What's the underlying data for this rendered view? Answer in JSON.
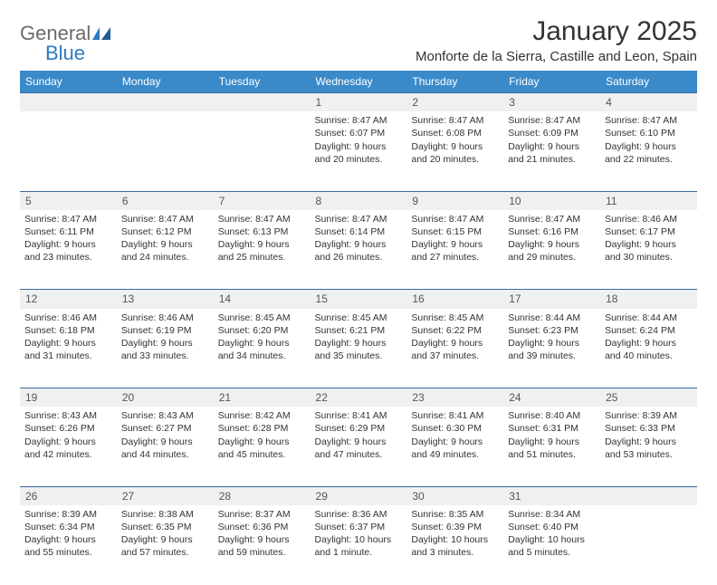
{
  "logo": {
    "part1": "General",
    "part2": "Blue"
  },
  "title": "January 2025",
  "location": "Monforte de la Sierra, Castille and Leon, Spain",
  "colors": {
    "header_bg": "#3a8ac9",
    "header_text": "#ffffff",
    "daynum_bg": "#eef0f2",
    "border": "#3a6a9a",
    "logo_gray": "#6a6a6a",
    "logo_blue": "#2a7bbf"
  },
  "day_headers": [
    "Sunday",
    "Monday",
    "Tuesday",
    "Wednesday",
    "Thursday",
    "Friday",
    "Saturday"
  ],
  "weeks": [
    {
      "nums": [
        "",
        "",
        "",
        "1",
        "2",
        "3",
        "4"
      ],
      "cells": [
        null,
        null,
        null,
        {
          "sunrise": "Sunrise: 8:47 AM",
          "sunset": "Sunset: 6:07 PM",
          "day1": "Daylight: 9 hours",
          "day2": "and 20 minutes."
        },
        {
          "sunrise": "Sunrise: 8:47 AM",
          "sunset": "Sunset: 6:08 PM",
          "day1": "Daylight: 9 hours",
          "day2": "and 20 minutes."
        },
        {
          "sunrise": "Sunrise: 8:47 AM",
          "sunset": "Sunset: 6:09 PM",
          "day1": "Daylight: 9 hours",
          "day2": "and 21 minutes."
        },
        {
          "sunrise": "Sunrise: 8:47 AM",
          "sunset": "Sunset: 6:10 PM",
          "day1": "Daylight: 9 hours",
          "day2": "and 22 minutes."
        }
      ]
    },
    {
      "nums": [
        "5",
        "6",
        "7",
        "8",
        "9",
        "10",
        "11"
      ],
      "cells": [
        {
          "sunrise": "Sunrise: 8:47 AM",
          "sunset": "Sunset: 6:11 PM",
          "day1": "Daylight: 9 hours",
          "day2": "and 23 minutes."
        },
        {
          "sunrise": "Sunrise: 8:47 AM",
          "sunset": "Sunset: 6:12 PM",
          "day1": "Daylight: 9 hours",
          "day2": "and 24 minutes."
        },
        {
          "sunrise": "Sunrise: 8:47 AM",
          "sunset": "Sunset: 6:13 PM",
          "day1": "Daylight: 9 hours",
          "day2": "and 25 minutes."
        },
        {
          "sunrise": "Sunrise: 8:47 AM",
          "sunset": "Sunset: 6:14 PM",
          "day1": "Daylight: 9 hours",
          "day2": "and 26 minutes."
        },
        {
          "sunrise": "Sunrise: 8:47 AM",
          "sunset": "Sunset: 6:15 PM",
          "day1": "Daylight: 9 hours",
          "day2": "and 27 minutes."
        },
        {
          "sunrise": "Sunrise: 8:47 AM",
          "sunset": "Sunset: 6:16 PM",
          "day1": "Daylight: 9 hours",
          "day2": "and 29 minutes."
        },
        {
          "sunrise": "Sunrise: 8:46 AM",
          "sunset": "Sunset: 6:17 PM",
          "day1": "Daylight: 9 hours",
          "day2": "and 30 minutes."
        }
      ]
    },
    {
      "nums": [
        "12",
        "13",
        "14",
        "15",
        "16",
        "17",
        "18"
      ],
      "cells": [
        {
          "sunrise": "Sunrise: 8:46 AM",
          "sunset": "Sunset: 6:18 PM",
          "day1": "Daylight: 9 hours",
          "day2": "and 31 minutes."
        },
        {
          "sunrise": "Sunrise: 8:46 AM",
          "sunset": "Sunset: 6:19 PM",
          "day1": "Daylight: 9 hours",
          "day2": "and 33 minutes."
        },
        {
          "sunrise": "Sunrise: 8:45 AM",
          "sunset": "Sunset: 6:20 PM",
          "day1": "Daylight: 9 hours",
          "day2": "and 34 minutes."
        },
        {
          "sunrise": "Sunrise: 8:45 AM",
          "sunset": "Sunset: 6:21 PM",
          "day1": "Daylight: 9 hours",
          "day2": "and 35 minutes."
        },
        {
          "sunrise": "Sunrise: 8:45 AM",
          "sunset": "Sunset: 6:22 PM",
          "day1": "Daylight: 9 hours",
          "day2": "and 37 minutes."
        },
        {
          "sunrise": "Sunrise: 8:44 AM",
          "sunset": "Sunset: 6:23 PM",
          "day1": "Daylight: 9 hours",
          "day2": "and 39 minutes."
        },
        {
          "sunrise": "Sunrise: 8:44 AM",
          "sunset": "Sunset: 6:24 PM",
          "day1": "Daylight: 9 hours",
          "day2": "and 40 minutes."
        }
      ]
    },
    {
      "nums": [
        "19",
        "20",
        "21",
        "22",
        "23",
        "24",
        "25"
      ],
      "cells": [
        {
          "sunrise": "Sunrise: 8:43 AM",
          "sunset": "Sunset: 6:26 PM",
          "day1": "Daylight: 9 hours",
          "day2": "and 42 minutes."
        },
        {
          "sunrise": "Sunrise: 8:43 AM",
          "sunset": "Sunset: 6:27 PM",
          "day1": "Daylight: 9 hours",
          "day2": "and 44 minutes."
        },
        {
          "sunrise": "Sunrise: 8:42 AM",
          "sunset": "Sunset: 6:28 PM",
          "day1": "Daylight: 9 hours",
          "day2": "and 45 minutes."
        },
        {
          "sunrise": "Sunrise: 8:41 AM",
          "sunset": "Sunset: 6:29 PM",
          "day1": "Daylight: 9 hours",
          "day2": "and 47 minutes."
        },
        {
          "sunrise": "Sunrise: 8:41 AM",
          "sunset": "Sunset: 6:30 PM",
          "day1": "Daylight: 9 hours",
          "day2": "and 49 minutes."
        },
        {
          "sunrise": "Sunrise: 8:40 AM",
          "sunset": "Sunset: 6:31 PM",
          "day1": "Daylight: 9 hours",
          "day2": "and 51 minutes."
        },
        {
          "sunrise": "Sunrise: 8:39 AM",
          "sunset": "Sunset: 6:33 PM",
          "day1": "Daylight: 9 hours",
          "day2": "and 53 minutes."
        }
      ]
    },
    {
      "nums": [
        "26",
        "27",
        "28",
        "29",
        "30",
        "31",
        ""
      ],
      "cells": [
        {
          "sunrise": "Sunrise: 8:39 AM",
          "sunset": "Sunset: 6:34 PM",
          "day1": "Daylight: 9 hours",
          "day2": "and 55 minutes."
        },
        {
          "sunrise": "Sunrise: 8:38 AM",
          "sunset": "Sunset: 6:35 PM",
          "day1": "Daylight: 9 hours",
          "day2": "and 57 minutes."
        },
        {
          "sunrise": "Sunrise: 8:37 AM",
          "sunset": "Sunset: 6:36 PM",
          "day1": "Daylight: 9 hours",
          "day2": "and 59 minutes."
        },
        {
          "sunrise": "Sunrise: 8:36 AM",
          "sunset": "Sunset: 6:37 PM",
          "day1": "Daylight: 10 hours",
          "day2": "and 1 minute."
        },
        {
          "sunrise": "Sunrise: 8:35 AM",
          "sunset": "Sunset: 6:39 PM",
          "day1": "Daylight: 10 hours",
          "day2": "and 3 minutes."
        },
        {
          "sunrise": "Sunrise: 8:34 AM",
          "sunset": "Sunset: 6:40 PM",
          "day1": "Daylight: 10 hours",
          "day2": "and 5 minutes."
        },
        null
      ]
    }
  ]
}
